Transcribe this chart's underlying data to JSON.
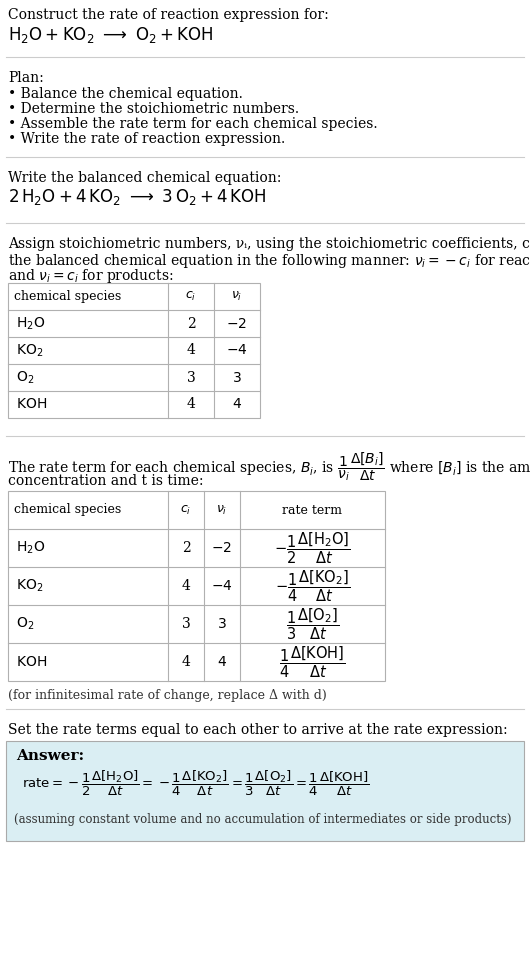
{
  "bg_color": "#ffffff",
  "light_blue_bg": "#daeef3",
  "table_border_color": "#b0b0b0",
  "section_line_color": "#cccccc",
  "title_text": "Construct the rate of reaction expression for:",
  "plan_title": "Plan:",
  "plan_items": [
    "• Balance the chemical equation.",
    "• Determine the stoichiometric numbers.",
    "• Assemble the rate term for each chemical species.",
    "• Write the rate of reaction expression."
  ],
  "balanced_label": "Write the balanced chemical equation:",
  "assign_text1": "Assign stoichiometric numbers, νᵢ, using the stoichiometric coefficients, cᵢ, from",
  "assign_text2": "the balanced chemical equation in the following manner: νᵢ = −cᵢ for reactants",
  "assign_text3": "and νᵢ = cᵢ for products:",
  "rate_text_line1": "The rate term for each chemical species, Bᵢ, is",
  "rate_text_line2": "concentration and t is time:",
  "infinitesimal_note": "(for infinitesimal rate of change, replace Δ with d)",
  "set_rate_text": "Set the rate terms equal to each other to arrive at the rate expression:",
  "answer_label": "Answer:",
  "footer_note": "(assuming constant volume and no accumulation of intermediates or side products)"
}
